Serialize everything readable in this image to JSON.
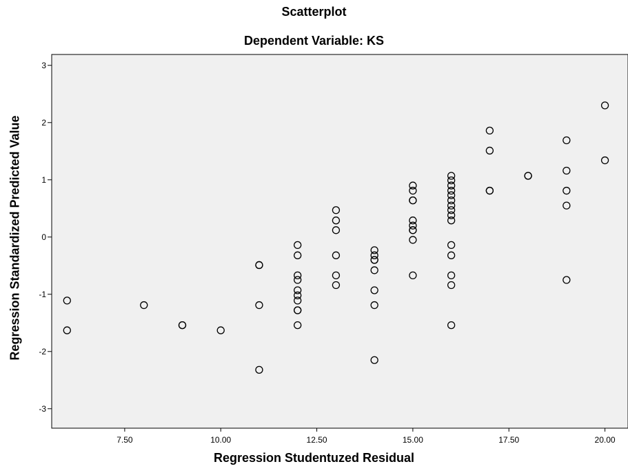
{
  "chart_data": {
    "type": "scatter",
    "title": "Scatterplot",
    "subtitle": "Dependent Variable: KS",
    "xlabel": "Regression Studentuzed Residual",
    "ylabel": "Regression Standardized Predicted Value",
    "xlim": [
      5.6,
      20.6
    ],
    "ylim": [
      -3.34,
      3.19
    ],
    "xticks": [
      7.5,
      10.0,
      12.5,
      15.0,
      17.5,
      20.0
    ],
    "xtick_labels": [
      "7.50",
      "10.00",
      "12.50",
      "15.00",
      "17.50",
      "20.00"
    ],
    "yticks": [
      -3,
      -2,
      -1,
      0,
      1,
      2,
      3
    ],
    "ytick_labels": [
      "-3",
      "-2",
      "-1",
      "0",
      "1",
      "2",
      "3"
    ],
    "grid": false,
    "background": "#f0f0f0",
    "marker": "open-circle",
    "points": [
      {
        "x": 6,
        "y": -1.11
      },
      {
        "x": 6,
        "y": -1.63
      },
      {
        "x": 8,
        "y": -1.19
      },
      {
        "x": 9,
        "y": -1.54
      },
      {
        "x": 9,
        "y": -1.54
      },
      {
        "x": 10,
        "y": -1.63
      },
      {
        "x": 11,
        "y": -0.49
      },
      {
        "x": 11,
        "y": -0.49
      },
      {
        "x": 11,
        "y": -1.19
      },
      {
        "x": 11,
        "y": -2.32
      },
      {
        "x": 12,
        "y": -0.14
      },
      {
        "x": 12,
        "y": -0.32
      },
      {
        "x": 12,
        "y": -0.67
      },
      {
        "x": 12,
        "y": -0.75
      },
      {
        "x": 12,
        "y": -0.93
      },
      {
        "x": 12,
        "y": -1.02
      },
      {
        "x": 12,
        "y": -1.11
      },
      {
        "x": 12,
        "y": -1.28
      },
      {
        "x": 12,
        "y": -1.28
      },
      {
        "x": 12,
        "y": -1.54
      },
      {
        "x": 13,
        "y": 0.47
      },
      {
        "x": 13,
        "y": 0.29
      },
      {
        "x": 13,
        "y": 0.12
      },
      {
        "x": 13,
        "y": -0.32
      },
      {
        "x": 13,
        "y": -0.67
      },
      {
        "x": 13,
        "y": -0.84
      },
      {
        "x": 14,
        "y": -0.23
      },
      {
        "x": 14,
        "y": -0.32
      },
      {
        "x": 14,
        "y": -0.4
      },
      {
        "x": 14,
        "y": -0.4
      },
      {
        "x": 14,
        "y": -0.58
      },
      {
        "x": 14,
        "y": -0.93
      },
      {
        "x": 14,
        "y": -1.19
      },
      {
        "x": 14,
        "y": -2.15
      },
      {
        "x": 15,
        "y": 0.9
      },
      {
        "x": 15,
        "y": 0.81
      },
      {
        "x": 15,
        "y": 0.64
      },
      {
        "x": 15,
        "y": 0.64
      },
      {
        "x": 15,
        "y": 0.29
      },
      {
        "x": 15,
        "y": 0.2
      },
      {
        "x": 15,
        "y": 0.12
      },
      {
        "x": 15,
        "y": 0.12
      },
      {
        "x": 15,
        "y": -0.05
      },
      {
        "x": 15,
        "y": -0.67
      },
      {
        "x": 16,
        "y": 1.07
      },
      {
        "x": 16,
        "y": 0.99
      },
      {
        "x": 16,
        "y": 0.9
      },
      {
        "x": 16,
        "y": 0.81
      },
      {
        "x": 16,
        "y": 0.73
      },
      {
        "x": 16,
        "y": 0.64
      },
      {
        "x": 16,
        "y": 0.55
      },
      {
        "x": 16,
        "y": 0.47
      },
      {
        "x": 16,
        "y": 0.38
      },
      {
        "x": 16,
        "y": 0.29
      },
      {
        "x": 16,
        "y": -0.14
      },
      {
        "x": 16,
        "y": -0.32
      },
      {
        "x": 16,
        "y": -0.67
      },
      {
        "x": 16,
        "y": -0.84
      },
      {
        "x": 16,
        "y": -1.54
      },
      {
        "x": 17,
        "y": 1.86
      },
      {
        "x": 17,
        "y": 1.51
      },
      {
        "x": 17,
        "y": 0.81
      },
      {
        "x": 17,
        "y": 0.81
      },
      {
        "x": 18,
        "y": 1.07
      },
      {
        "x": 18,
        "y": 1.07
      },
      {
        "x": 19,
        "y": 1.69
      },
      {
        "x": 19,
        "y": 1.16
      },
      {
        "x": 19,
        "y": 0.81
      },
      {
        "x": 19,
        "y": 0.55
      },
      {
        "x": 19,
        "y": -0.75
      },
      {
        "x": 20,
        "y": 2.3
      },
      {
        "x": 20,
        "y": 1.34
      }
    ]
  }
}
